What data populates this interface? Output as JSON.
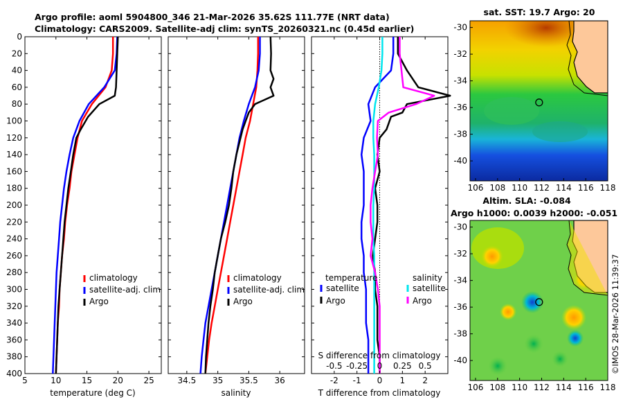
{
  "header": {
    "line1": "Argo profile: aoml 5904800_346 21-Mar-2026 35.62S 111.77E (NRT data)",
    "line2": "Climatology: CARS2009. Satellite-adj clim: synTS_20260321.nc (0.45d earlier)"
  },
  "timestamp": "©IMOS 28-Mar-2026 11:39:37",
  "colors": {
    "climatology": "#ff0000",
    "satellite": "#0000ff",
    "argo": "#000000",
    "salinity_sat": "#00e5ee",
    "salinity_argo": "#ff00ff"
  },
  "chart_data": [
    {
      "type": "line",
      "title": "",
      "xlabel": "temperature (deg C)",
      "ylabel": "",
      "xlim": [
        5,
        27
      ],
      "ylim": [
        400,
        0
      ],
      "xticks": [
        "5",
        "10",
        "15",
        "20",
        "25"
      ],
      "yticks": [
        "0",
        "20",
        "40",
        "60",
        "80",
        "100",
        "120",
        "140",
        "160",
        "180",
        "200",
        "220",
        "240",
        "260",
        "280",
        "300",
        "320",
        "340",
        "360",
        "380",
        "400"
      ],
      "legend": [
        "climatology",
        "satellite-adj. clim",
        "Argo"
      ],
      "series": [
        {
          "name": "climatology",
          "color": "#ff0000",
          "points": [
            [
              19.2,
              0
            ],
            [
              19.2,
              20
            ],
            [
              19.0,
              40
            ],
            [
              18.0,
              60
            ],
            [
              15.8,
              80
            ],
            [
              14.2,
              100
            ],
            [
              13.5,
              120
            ],
            [
              13.0,
              140
            ],
            [
              12.5,
              160
            ],
            [
              12.2,
              180
            ],
            [
              11.8,
              200
            ],
            [
              11.5,
              220
            ],
            [
              11.3,
              240
            ],
            [
              11.0,
              260
            ],
            [
              10.8,
              280
            ],
            [
              10.6,
              300
            ],
            [
              10.5,
              320
            ],
            [
              10.3,
              340
            ],
            [
              10.2,
              360
            ],
            [
              10.1,
              380
            ],
            [
              10.0,
              400
            ]
          ]
        },
        {
          "name": "satellite-adj. clim",
          "color": "#0000ff",
          "points": [
            [
              19.9,
              0
            ],
            [
              19.8,
              20
            ],
            [
              19.5,
              40
            ],
            [
              17.8,
              60
            ],
            [
              15.3,
              80
            ],
            [
              13.8,
              100
            ],
            [
              12.8,
              120
            ],
            [
              12.2,
              140
            ],
            [
              11.7,
              160
            ],
            [
              11.3,
              180
            ],
            [
              11.0,
              200
            ],
            [
              10.7,
              220
            ],
            [
              10.5,
              240
            ],
            [
              10.3,
              260
            ],
            [
              10.1,
              280
            ],
            [
              10.0,
              300
            ],
            [
              9.9,
              320
            ],
            [
              9.8,
              340
            ],
            [
              9.7,
              360
            ],
            [
              9.6,
              380
            ],
            [
              9.5,
              400
            ]
          ]
        },
        {
          "name": "Argo",
          "color": "#000000",
          "points": [
            [
              20.0,
              0
            ],
            [
              19.9,
              20
            ],
            [
              19.8,
              40
            ],
            [
              19.7,
              60
            ],
            [
              19.5,
              70
            ],
            [
              17.0,
              80
            ],
            [
              15.2,
              95
            ],
            [
              14.0,
              110
            ],
            [
              13.3,
              120
            ],
            [
              12.8,
              140
            ],
            [
              12.4,
              160
            ],
            [
              12.0,
              180
            ],
            [
              11.7,
              200
            ],
            [
              11.4,
              220
            ],
            [
              11.2,
              240
            ],
            [
              11.0,
              260
            ],
            [
              10.8,
              280
            ],
            [
              10.6,
              300
            ],
            [
              10.4,
              320
            ],
            [
              10.3,
              340
            ],
            [
              10.2,
              360
            ],
            [
              10.1,
              380
            ],
            [
              10.0,
              400
            ]
          ]
        }
      ]
    },
    {
      "type": "line",
      "title": "",
      "xlabel": "salinity",
      "ylabel": "",
      "xlim": [
        34.2,
        36.4
      ],
      "ylim": [
        400,
        0
      ],
      "xticks": [
        "34.5",
        "35",
        "35.5",
        "36"
      ],
      "legend": [
        "climatology",
        "satellite-adj. clim",
        "Argo"
      ],
      "series": [
        {
          "name": "climatology",
          "color": "#ff0000",
          "points": [
            [
              35.65,
              0
            ],
            [
              35.65,
              20
            ],
            [
              35.64,
              40
            ],
            [
              35.62,
              60
            ],
            [
              35.57,
              80
            ],
            [
              35.52,
              100
            ],
            [
              35.45,
              120
            ],
            [
              35.4,
              140
            ],
            [
              35.35,
              160
            ],
            [
              35.3,
              180
            ],
            [
              35.25,
              200
            ],
            [
              35.2,
              220
            ],
            [
              35.15,
              240
            ],
            [
              35.1,
              260
            ],
            [
              35.05,
              280
            ],
            [
              35.0,
              300
            ],
            [
              34.95,
              320
            ],
            [
              34.9,
              340
            ],
            [
              34.86,
              360
            ],
            [
              34.83,
              380
            ],
            [
              34.8,
              400
            ]
          ]
        },
        {
          "name": "satellite-adj. clim",
          "color": "#0000ff",
          "points": [
            [
              35.68,
              0
            ],
            [
              35.68,
              20
            ],
            [
              35.66,
              40
            ],
            [
              35.6,
              60
            ],
            [
              35.5,
              80
            ],
            [
              35.42,
              100
            ],
            [
              35.35,
              120
            ],
            [
              35.3,
              140
            ],
            [
              35.25,
              160
            ],
            [
              35.2,
              180
            ],
            [
              35.15,
              200
            ],
            [
              35.1,
              220
            ],
            [
              35.05,
              240
            ],
            [
              35.0,
              260
            ],
            [
              34.95,
              280
            ],
            [
              34.9,
              300
            ],
            [
              34.85,
              320
            ],
            [
              34.8,
              340
            ],
            [
              34.77,
              360
            ],
            [
              34.74,
              380
            ],
            [
              34.72,
              400
            ]
          ]
        },
        {
          "name": "Argo",
          "color": "#000000",
          "points": [
            [
              35.85,
              0
            ],
            [
              35.86,
              20
            ],
            [
              35.85,
              40
            ],
            [
              35.9,
              50
            ],
            [
              35.85,
              60
            ],
            [
              35.9,
              70
            ],
            [
              35.6,
              80
            ],
            [
              35.5,
              90
            ],
            [
              35.45,
              100
            ],
            [
              35.4,
              110
            ],
            [
              35.35,
              125
            ],
            [
              35.3,
              140
            ],
            [
              35.25,
              160
            ],
            [
              35.22,
              180
            ],
            [
              35.18,
              200
            ],
            [
              35.12,
              220
            ],
            [
              35.05,
              240
            ],
            [
              35.0,
              260
            ],
            [
              34.95,
              280
            ],
            [
              34.92,
              300
            ],
            [
              34.88,
              320
            ],
            [
              34.85,
              340
            ],
            [
              34.83,
              360
            ],
            [
              34.81,
              380
            ],
            [
              34.8,
              400
            ]
          ]
        }
      ]
    },
    {
      "type": "line",
      "title": "",
      "xlabel": "T difference from climatology",
      "x2label": "S difference from climatology",
      "xlim": [
        -3,
        3
      ],
      "ylim": [
        400,
        0
      ],
      "xticks": [
        "-2",
        "-1",
        "0",
        "1",
        "2"
      ],
      "x2ticks": [
        "-0.5",
        "-0.25",
        "0",
        "0.25",
        "0.5"
      ],
      "legend_groups": [
        {
          "title": "temperature",
          "entries": [
            "satellite",
            "Argo"
          ]
        },
        {
          "title": "salinity",
          "entries": [
            "satellite",
            "Argo"
          ]
        }
      ],
      "series": [
        {
          "name": "temperature satellite",
          "color": "#0000ff",
          "points": [
            [
              0.6,
              0
            ],
            [
              0.6,
              20
            ],
            [
              0.5,
              40
            ],
            [
              -0.2,
              60
            ],
            [
              -0.5,
              80
            ],
            [
              -0.4,
              100
            ],
            [
              -0.7,
              120
            ],
            [
              -0.8,
              140
            ],
            [
              -0.7,
              160
            ],
            [
              -0.7,
              180
            ],
            [
              -0.7,
              200
            ],
            [
              -0.8,
              220
            ],
            [
              -0.8,
              240
            ],
            [
              -0.7,
              260
            ],
            [
              -0.7,
              280
            ],
            [
              -0.6,
              300
            ],
            [
              -0.6,
              320
            ],
            [
              -0.6,
              340
            ],
            [
              -0.5,
              360
            ],
            [
              -0.5,
              380
            ],
            [
              -0.5,
              400
            ]
          ]
        },
        {
          "name": "temperature Argo",
          "color": "#000000",
          "points": [
            [
              0.8,
              0
            ],
            [
              0.8,
              20
            ],
            [
              1.2,
              40
            ],
            [
              1.7,
              60
            ],
            [
              3.1,
              70
            ],
            [
              1.2,
              80
            ],
            [
              1.0,
              90
            ],
            [
              0.5,
              95
            ],
            [
              0.3,
              110
            ],
            [
              0.0,
              120
            ],
            [
              -0.1,
              140
            ],
            [
              0.0,
              160
            ],
            [
              -0.2,
              180
            ],
            [
              -0.1,
              200
            ],
            [
              -0.1,
              220
            ],
            [
              -0.2,
              240
            ],
            [
              -0.3,
              260
            ],
            [
              -0.2,
              280
            ],
            [
              -0.2,
              300
            ],
            [
              -0.1,
              320
            ],
            [
              -0.1,
              340
            ],
            [
              -0.1,
              360
            ],
            [
              0.0,
              380
            ],
            [
              0.0,
              400
            ]
          ]
        },
        {
          "name": "salinity satellite",
          "color": "#00e5ee",
          "points": [
            [
              0.03,
              0
            ],
            [
              0.03,
              20
            ],
            [
              0.02,
              40
            ],
            [
              -0.01,
              60
            ],
            [
              -0.05,
              80
            ],
            [
              -0.07,
              100
            ],
            [
              -0.07,
              120
            ],
            [
              -0.06,
              140
            ],
            [
              -0.06,
              160
            ],
            [
              -0.06,
              180
            ],
            [
              -0.07,
              200
            ],
            [
              -0.07,
              220
            ],
            [
              -0.07,
              240
            ],
            [
              -0.06,
              260
            ],
            [
              -0.06,
              280
            ],
            [
              -0.06,
              300
            ],
            [
              -0.06,
              320
            ],
            [
              -0.06,
              340
            ],
            [
              -0.06,
              360
            ],
            [
              -0.06,
              380
            ],
            [
              -0.06,
              400
            ]
          ]
        },
        {
          "name": "salinity Argo",
          "color": "#ff00ff",
          "points": [
            [
              0.22,
              0
            ],
            [
              0.22,
              20
            ],
            [
              0.24,
              40
            ],
            [
              0.26,
              60
            ],
            [
              0.6,
              70
            ],
            [
              0.4,
              80
            ],
            [
              0.1,
              90
            ],
            [
              -0.02,
              100
            ],
            [
              -0.03,
              120
            ],
            [
              -0.02,
              140
            ],
            [
              -0.05,
              160
            ],
            [
              -0.08,
              180
            ],
            [
              -0.1,
              200
            ],
            [
              -0.1,
              220
            ],
            [
              -0.08,
              240
            ],
            [
              -0.1,
              260
            ],
            [
              -0.05,
              280
            ],
            [
              -0.02,
              300
            ],
            [
              0.0,
              320
            ],
            [
              0.0,
              340
            ],
            [
              0.0,
              360
            ],
            [
              0.0,
              380
            ],
            [
              0.0,
              400
            ]
          ]
        }
      ]
    },
    {
      "type": "heatmap",
      "title": "sat. SST: 19.7 Argo: 20",
      "xlim": [
        105.5,
        118
      ],
      "ylim": [
        -41.5,
        -29.5
      ],
      "xticks": [
        "106",
        "108",
        "110",
        "112",
        "114",
        "116",
        "118"
      ],
      "yticks": [
        "-30",
        "-32",
        "-34",
        "-36",
        "-38",
        "-40"
      ],
      "marker": {
        "lon": 111.77,
        "lat": -35.62
      }
    },
    {
      "type": "heatmap",
      "title": "Altim. SLA: -0.084",
      "subtitle": "Argo h1000: 0.0039 h2000: -0.051",
      "xlim": [
        105.5,
        118
      ],
      "ylim": [
        -41.5,
        -29.5
      ],
      "xticks": [
        "106",
        "108",
        "110",
        "112",
        "114",
        "116",
        "118"
      ],
      "yticks": [
        "-30",
        "-32",
        "-34",
        "-36",
        "-38",
        "-40"
      ],
      "marker": {
        "lon": 111.77,
        "lat": -35.62
      }
    }
  ]
}
